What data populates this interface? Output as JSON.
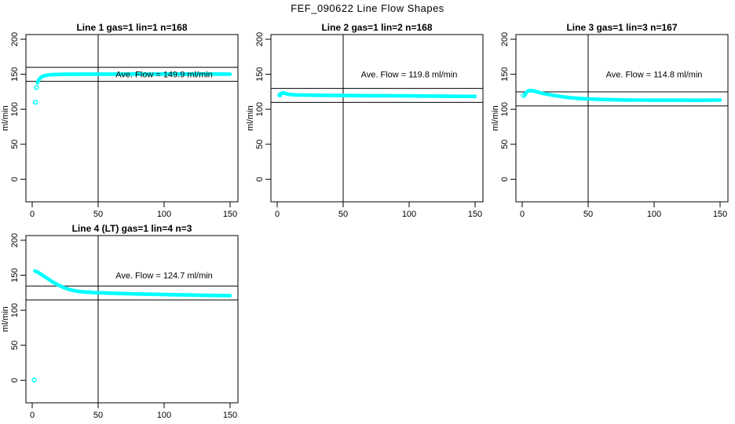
{
  "page": {
    "main_title": "FEF_090622  Line Flow Shapes",
    "background": "#ffffff"
  },
  "colors": {
    "series": "#00ffff",
    "axis": "#000000",
    "text": "#000000"
  },
  "chart_data": [
    {
      "type": "scatter",
      "title": "Line 1 gas=1 lin=1 n=168",
      "ylabel": "ml/min",
      "xlabel": "",
      "x_ticks": [
        0,
        50,
        100,
        150
      ],
      "y_ticks": [
        0,
        50,
        100,
        150,
        200
      ],
      "xlim": [
        0,
        150
      ],
      "ylim": [
        0,
        200
      ],
      "grid": false,
      "vline_x": 50,
      "hlines": [
        139.9,
        159.9
      ],
      "ave_flow": 149.9,
      "annotation": "Ave. Flow =  149.9  ml/min",
      "annotation_xy": [
        100,
        150
      ],
      "points": [
        [
          4,
          138
        ],
        [
          5,
          142
        ],
        [
          6,
          144.5
        ],
        [
          7,
          146
        ],
        [
          8,
          147
        ],
        [
          10,
          148.2
        ],
        [
          12,
          149
        ],
        [
          15,
          149.5
        ],
        [
          20,
          149.8
        ],
        [
          25,
          150
        ],
        [
          30,
          150
        ],
        [
          40,
          150.2
        ],
        [
          50,
          150.2
        ],
        [
          60,
          150.2
        ],
        [
          75,
          150.3
        ],
        [
          90,
          150.2
        ],
        [
          105,
          150.3
        ],
        [
          120,
          150.2
        ],
        [
          135,
          150.3
        ],
        [
          150,
          150.2
        ]
      ],
      "outliers": [
        [
          2.5,
          110
        ],
        [
          3.2,
          131
        ]
      ]
    },
    {
      "type": "scatter",
      "title": "Line 2 gas=1 lin=2 n=168",
      "ylabel": "ml/min",
      "xlabel": "",
      "x_ticks": [
        0,
        50,
        100,
        150
      ],
      "y_ticks": [
        0,
        50,
        100,
        150,
        200
      ],
      "xlim": [
        0,
        150
      ],
      "ylim": [
        0,
        200
      ],
      "grid": false,
      "vline_x": 50,
      "hlines": [
        109.8,
        129.8
      ],
      "ave_flow": 119.8,
      "annotation": "Ave. Flow =  119.8  ml/min",
      "annotation_xy": [
        100,
        150
      ],
      "points": [
        [
          2,
          120.5
        ],
        [
          3,
          122.5
        ],
        [
          4,
          123.5
        ],
        [
          5,
          123.2
        ],
        [
          6,
          122.6
        ],
        [
          8,
          121.6
        ],
        [
          10,
          121
        ],
        [
          13,
          120.6
        ],
        [
          16,
          120.4
        ],
        [
          20,
          120.2
        ],
        [
          25,
          120.1
        ],
        [
          30,
          120
        ],
        [
          40,
          119.8
        ],
        [
          50,
          119.7
        ],
        [
          60,
          119.5
        ],
        [
          70,
          119.4
        ],
        [
          80,
          119.3
        ],
        [
          90,
          119.2
        ],
        [
          100,
          119.1
        ],
        [
          110,
          118.9
        ],
        [
          120,
          118.8
        ],
        [
          130,
          118.6
        ],
        [
          140,
          118.5
        ],
        [
          150,
          118.3
        ]
      ],
      "outliers": [
        [
          2,
          120.5
        ]
      ]
    },
    {
      "type": "scatter",
      "title": "Line 3 gas=1 lin=3 n=167",
      "ylabel": "ml/min",
      "xlabel": "",
      "x_ticks": [
        0,
        50,
        100,
        150
      ],
      "y_ticks": [
        0,
        50,
        100,
        150,
        200
      ],
      "xlim": [
        0,
        150
      ],
      "ylim": [
        0,
        200
      ],
      "grid": false,
      "vline_x": 50,
      "hlines": [
        104.8,
        124.8
      ],
      "ave_flow": 114.8,
      "annotation": "Ave. Flow =  114.8  ml/min",
      "annotation_xy": [
        100,
        150
      ],
      "points": [
        [
          2,
          120
        ],
        [
          3,
          123.5
        ],
        [
          4,
          125.5
        ],
        [
          5,
          126.5
        ],
        [
          6,
          126.8
        ],
        [
          8,
          126.3
        ],
        [
          10,
          125.5
        ],
        [
          13,
          124
        ],
        [
          16,
          122.5
        ],
        [
          20,
          121
        ],
        [
          25,
          119.3
        ],
        [
          30,
          118
        ],
        [
          35,
          116.8
        ],
        [
          40,
          116
        ],
        [
          45,
          115.2
        ],
        [
          50,
          114.8
        ],
        [
          60,
          114
        ],
        [
          70,
          113.5
        ],
        [
          80,
          113.2
        ],
        [
          90,
          113.1
        ],
        [
          100,
          113
        ],
        [
          110,
          112.9
        ],
        [
          120,
          112.9
        ],
        [
          130,
          112.8
        ],
        [
          140,
          113
        ],
        [
          150,
          113.1
        ]
      ],
      "outliers": [
        [
          1,
          119.8
        ]
      ]
    },
    {
      "type": "scatter",
      "title": "Line 4 (LT) gas=1 lin=4 n=3",
      "ylabel": "ml/min",
      "xlabel": "",
      "x_ticks": [
        0,
        50,
        100,
        150
      ],
      "y_ticks": [
        0,
        50,
        100,
        150,
        200
      ],
      "xlim": [
        0,
        150
      ],
      "ylim": [
        0,
        200
      ],
      "grid": false,
      "vline_x": 50,
      "hlines": [
        114.7,
        134.7
      ],
      "ave_flow": 124.7,
      "annotation": "Ave. Flow =  124.7  ml/min",
      "annotation_xy": [
        100,
        150
      ],
      "points": [
        [
          2,
          156
        ],
        [
          3,
          155.5
        ],
        [
          4,
          154.5
        ],
        [
          5,
          153.5
        ],
        [
          6,
          152.3
        ],
        [
          8,
          149.8
        ],
        [
          10,
          147.3
        ],
        [
          12,
          144.8
        ],
        [
          14,
          142.3
        ],
        [
          16,
          140
        ],
        [
          18,
          137.8
        ],
        [
          20,
          135.8
        ],
        [
          23,
          133.2
        ],
        [
          26,
          131
        ],
        [
          29,
          129.2
        ],
        [
          32,
          128
        ],
        [
          35,
          127
        ],
        [
          38,
          126.3
        ],
        [
          42,
          125.8
        ],
        [
          46,
          125.3
        ],
        [
          50,
          125
        ],
        [
          55,
          124.7
        ],
        [
          60,
          124.4
        ],
        [
          70,
          123.8
        ],
        [
          80,
          123.3
        ],
        [
          90,
          122.9
        ],
        [
          100,
          122.5
        ],
        [
          110,
          122.1
        ],
        [
          120,
          121.8
        ],
        [
          130,
          121.4
        ],
        [
          140,
          121.1
        ],
        [
          150,
          120.8
        ]
      ],
      "outliers": [
        [
          1.5,
          0.5
        ]
      ]
    }
  ]
}
